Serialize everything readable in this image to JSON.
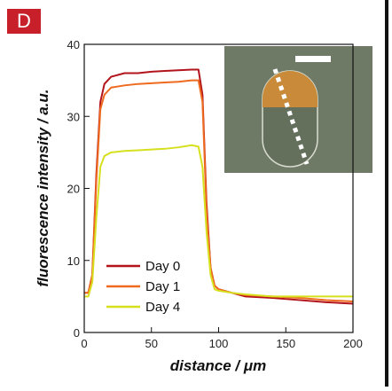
{
  "chart_data": {
    "type": "line",
    "panel_label": "D",
    "x_label": "distance / μm",
    "y_label": "fluorescence intensity / a.u.",
    "xlim": [
      0,
      200
    ],
    "ylim": [
      0,
      40
    ],
    "xticks": [
      0,
      50,
      100,
      150,
      200
    ],
    "yticks": [
      0,
      10,
      20,
      30,
      40
    ],
    "x": [
      0,
      3,
      6,
      9,
      12,
      15,
      20,
      30,
      40,
      50,
      60,
      70,
      80,
      85,
      88,
      91,
      94,
      97,
      100,
      110,
      120,
      140,
      160,
      180,
      200
    ],
    "series": [
      {
        "name": "Day 0",
        "color": "#b3141c",
        "values": [
          5.5,
          5.5,
          8,
          22,
          32,
          34.5,
          35.5,
          36,
          36,
          36.2,
          36.3,
          36.4,
          36.5,
          36.5,
          33,
          18,
          9,
          6.5,
          6,
          5.5,
          5,
          4.8,
          4.5,
          4.2,
          4
        ]
      },
      {
        "name": "Day 1",
        "color": "#ee6a1e",
        "values": [
          5.5,
          5.5,
          8,
          21,
          31,
          33,
          34,
          34.3,
          34.5,
          34.6,
          34.7,
          34.8,
          35,
          35,
          32,
          17,
          9,
          6.5,
          6,
          5.5,
          5.2,
          5,
          4.8,
          4.5,
          4.3
        ]
      },
      {
        "name": "Day 4",
        "color": "#d6e01e",
        "values": [
          5,
          5,
          7,
          16,
          23,
          24.5,
          25,
          25.2,
          25.3,
          25.4,
          25.5,
          25.7,
          26,
          25.8,
          23,
          14,
          8,
          6,
          5.8,
          5.5,
          5.3,
          5,
          5,
          5,
          5
        ]
      }
    ]
  }
}
